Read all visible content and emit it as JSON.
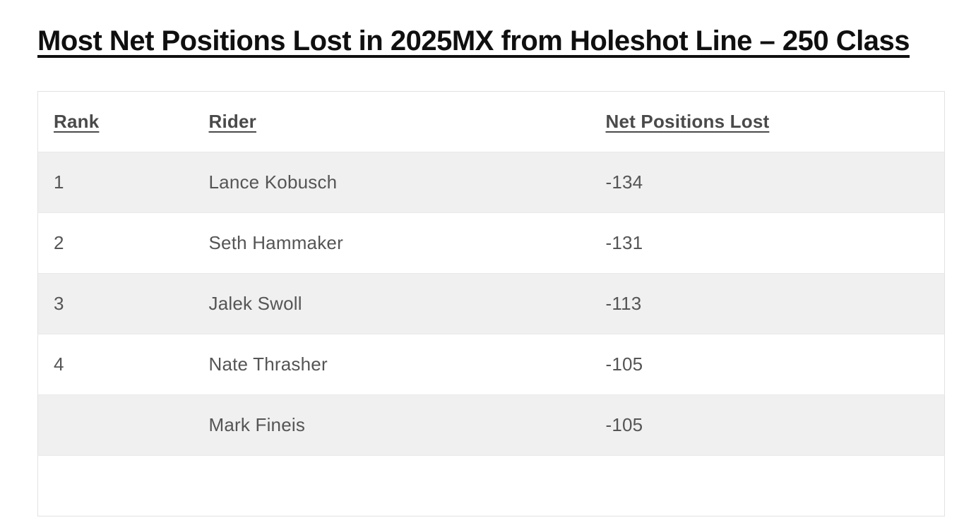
{
  "page": {
    "title": "Most Net Positions Lost in 2025MX from Holeshot Line – 250 Class"
  },
  "table": {
    "columns": [
      {
        "label": "Rank"
      },
      {
        "label": "Rider"
      },
      {
        "label": "Net Positions Lost"
      }
    ],
    "rows": [
      {
        "rank": "1",
        "rider": "Lance Kobusch",
        "net_positions_lost": "-134"
      },
      {
        "rank": "2",
        "rider": "Seth Hammaker",
        "net_positions_lost": "-131"
      },
      {
        "rank": "3",
        "rider": "Jalek Swoll",
        "net_positions_lost": "-113"
      },
      {
        "rank": "4",
        "rider": "Nate Thrasher",
        "net_positions_lost": "-105"
      },
      {
        "rank": "",
        "rider": "Mark Fineis",
        "net_positions_lost": "-105"
      }
    ]
  },
  "colors": {
    "title_text": "#0f0f0f",
    "header_text": "#4a4a4a",
    "cell_text": "#555555",
    "row_stripe": "#f0f0f0",
    "table_border": "#e2e2e2",
    "row_divider": "#e9e9e9",
    "page_background": "#ffffff"
  }
}
